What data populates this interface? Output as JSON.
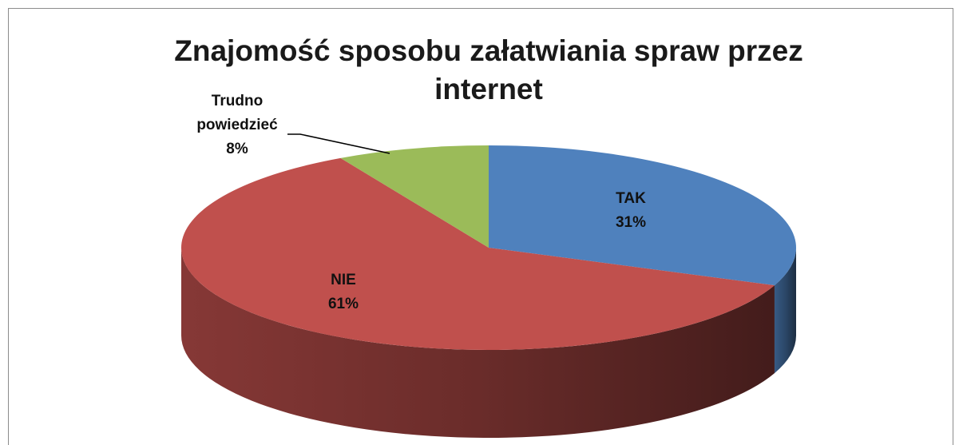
{
  "chart_data": {
    "type": "pie3d",
    "title": "Znajomość sposobu załatwiania spraw przez internet",
    "categories": [
      "TAK",
      "NIE",
      "Trudno powiedzieć"
    ],
    "values": [
      31,
      61,
      8
    ],
    "value_labels": [
      "31%",
      "61%",
      "8%"
    ],
    "colors": [
      "#4f81bd",
      "#c0504d",
      "#9bbb59"
    ]
  }
}
